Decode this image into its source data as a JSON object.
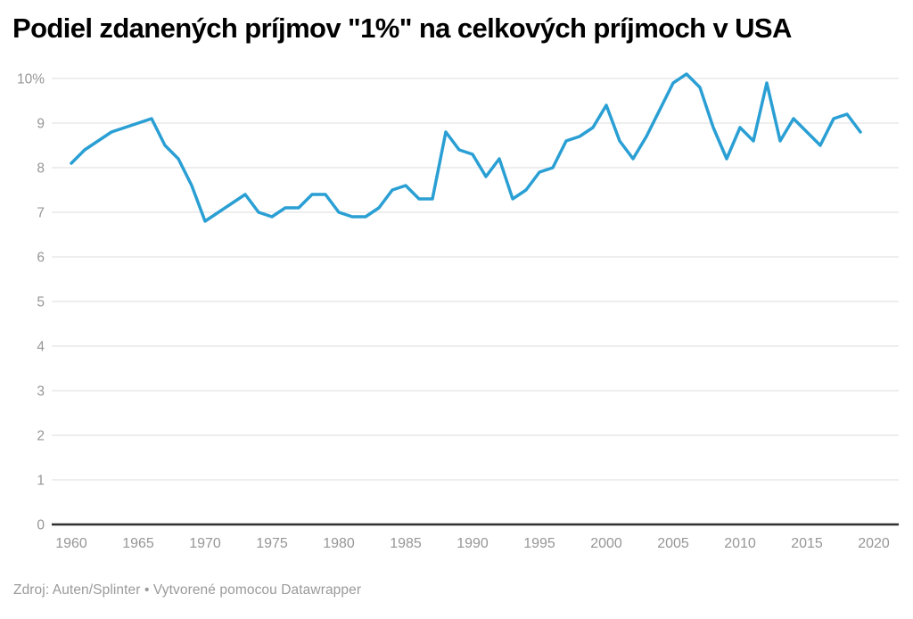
{
  "header": {
    "title": "Podiel zdanených príjmov \"1%\" na celkových príjmoch v USA"
  },
  "footer": {
    "source": "Zdroj: Auten/Splinter • Vytvorené pomocou Datawrapper"
  },
  "chart_data": {
    "type": "line",
    "title": "Podiel zdanených príjmov \"1%\" na celkových príjmoch v USA",
    "source_note": "Zdroj: Auten/Splinter • Vytvorené pomocou Datawrapper",
    "xlabel": "",
    "ylabel": "",
    "unit": "%",
    "xlim": [
      1958.5,
      2021.9
    ],
    "ylim": [
      0,
      10
    ],
    "grid": "horizontal",
    "legend": "none",
    "x_ticks": [
      1960,
      1965,
      1970,
      1975,
      1980,
      1985,
      1990,
      1995,
      2000,
      2005,
      2010,
      2015,
      2020
    ],
    "y_ticks": [
      {
        "value": 10,
        "label": "10%"
      },
      {
        "value": 9,
        "label": "9"
      },
      {
        "value": 8,
        "label": "8"
      },
      {
        "value": 7,
        "label": "7"
      },
      {
        "value": 6,
        "label": "6"
      },
      {
        "value": 5,
        "label": "5"
      },
      {
        "value": 4,
        "label": "4"
      },
      {
        "value": 3,
        "label": "3"
      },
      {
        "value": 2,
        "label": "2"
      },
      {
        "value": 1,
        "label": "1"
      },
      {
        "value": 0,
        "label": "0"
      }
    ],
    "x": [
      1960,
      1961,
      1962,
      1963,
      1964,
      1965,
      1966,
      1967,
      1968,
      1969,
      1970,
      1971,
      1972,
      1973,
      1974,
      1975,
      1976,
      1977,
      1978,
      1979,
      1980,
      1981,
      1982,
      1983,
      1984,
      1985,
      1986,
      1987,
      1988,
      1989,
      1990,
      1991,
      1992,
      1993,
      1994,
      1995,
      1996,
      1997,
      1998,
      1999,
      2000,
      2001,
      2002,
      2003,
      2004,
      2005,
      2006,
      2007,
      2008,
      2009,
      2010,
      2011,
      2012,
      2013,
      2014,
      2015,
      2016,
      2017,
      2018,
      2019
    ],
    "series": [
      {
        "name": "Podiel zdanených príjmov 1%",
        "values": [
          8.1,
          8.4,
          8.6,
          8.8,
          8.9,
          9.0,
          9.1,
          8.5,
          8.2,
          7.6,
          6.8,
          7.0,
          7.2,
          7.4,
          7.0,
          6.9,
          7.1,
          7.1,
          7.4,
          7.4,
          7.0,
          6.9,
          6.9,
          7.1,
          7.5,
          7.6,
          7.3,
          7.3,
          8.8,
          8.4,
          8.3,
          7.8,
          8.2,
          7.3,
          7.5,
          7.9,
          8.0,
          8.6,
          8.7,
          8.9,
          9.4,
          8.6,
          8.2,
          8.7,
          9.3,
          9.9,
          10.1,
          9.8,
          8.9,
          8.2,
          8.9,
          8.6,
          9.9,
          8.6,
          9.1,
          8.8,
          8.5,
          9.1,
          9.2,
          8.8
        ]
      }
    ],
    "colors": {
      "line": "#2a9fd4",
      "grid": "#dddddd",
      "baseline": "#2f2f2f",
      "tick_label": "#969696",
      "title": "#000000",
      "source": "#9a9a9a"
    }
  }
}
